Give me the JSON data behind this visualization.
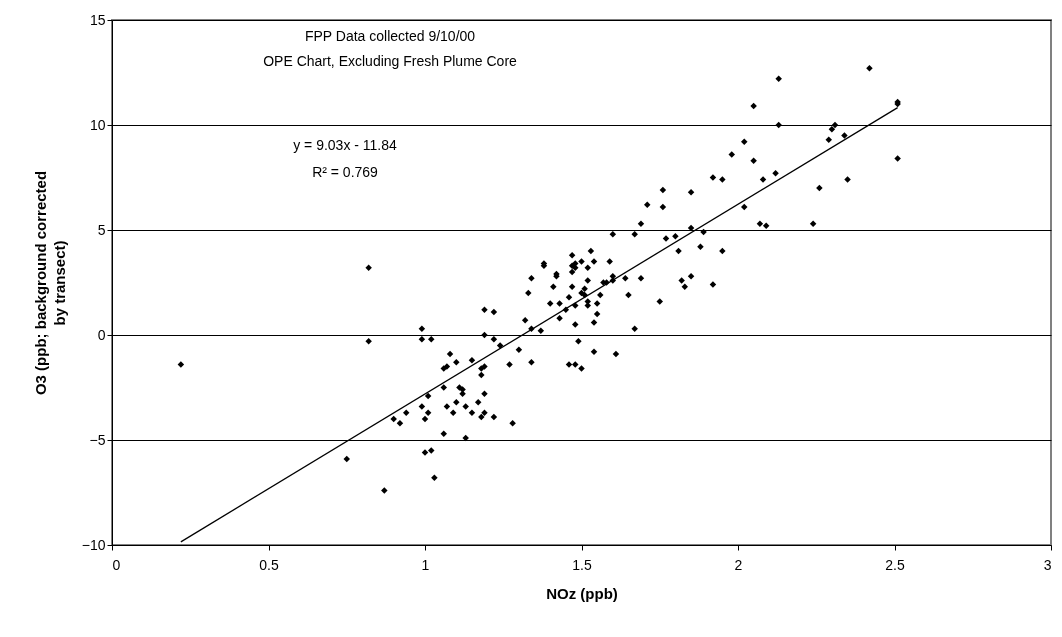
{
  "chart_data": {
    "type": "scatter",
    "xlabel": "NOz (ppb)",
    "ylabel": "O3 (ppb; background corrected by transect)",
    "annotations": [
      "FPP Data collected 9/10/00",
      "OPE Chart, Excluding Fresh Plume Core",
      "y = 9.03x - 11.84",
      "R² = 0.769"
    ],
    "xlim": [
      0,
      3
    ],
    "xticks": [
      0,
      0.5,
      1,
      1.5,
      2,
      2.5,
      3
    ],
    "ylim": [
      -10,
      15
    ],
    "yticks": [
      -10,
      -5,
      0,
      5,
      10,
      15
    ],
    "grid": "y",
    "series": [
      {
        "color": "#000000",
        "marker": "diamond",
        "x": [
          0.22,
          0.82,
          0.82,
          0.99,
          0.99,
          1.02,
          1.08,
          1.07,
          1.06,
          1.06,
          1.01,
          1.07,
          0.99,
          1.01,
          1.0,
          0.94,
          0.9,
          0.92,
          1.06,
          0.75,
          1.0,
          1.02,
          1.03,
          0.87,
          1.1,
          1.11,
          1.12,
          1.12,
          1.15,
          1.1,
          1.09,
          1.13,
          1.15,
          1.17,
          1.19,
          1.18,
          1.19,
          1.22,
          1.28,
          1.13,
          1.18,
          1.18,
          1.19,
          1.19,
          1.22,
          1.19,
          1.22,
          1.24,
          1.27,
          1.3,
          1.32,
          1.34,
          1.34,
          1.37,
          1.33,
          1.34,
          1.38,
          1.38,
          1.41,
          1.42,
          1.42,
          1.4,
          1.43,
          1.43,
          1.45,
          1.46,
          1.47,
          1.47,
          1.47,
          1.48,
          1.47,
          1.48,
          1.48,
          1.48,
          1.49,
          1.46,
          1.48,
          1.5,
          1.5,
          1.53,
          1.52,
          1.54,
          1.59,
          1.6,
          1.67,
          1.69,
          1.71,
          1.76,
          1.76,
          1.77,
          1.8,
          1.81,
          1.85,
          1.85,
          1.89,
          1.88,
          1.95,
          1.92,
          1.95,
          1.98,
          2.02,
          2.05,
          2.08,
          2.12,
          2.02,
          2.07,
          2.09,
          2.24,
          2.26,
          2.35,
          1.6,
          1.6,
          1.57,
          1.58,
          1.56,
          1.55,
          1.55,
          1.54,
          1.52,
          1.51,
          1.51,
          1.52,
          1.52,
          1.5,
          1.64,
          1.69,
          1.65,
          1.75,
          1.67,
          1.82,
          1.83,
          1.85,
          1.92,
          1.54,
          1.61,
          2.42,
          2.51,
          2.51,
          2.31,
          2.3,
          2.34,
          2.29,
          2.51,
          2.05,
          2.13,
          2.13
        ],
        "values": [
          -1.4,
          3.2,
          -0.3,
          0.3,
          -0.2,
          -0.2,
          -0.9,
          -1.5,
          -1.6,
          -2.5,
          -2.9,
          -3.4,
          -3.4,
          -3.7,
          -4.0,
          -3.7,
          -4.0,
          -4.2,
          -4.7,
          -5.9,
          -5.6,
          -5.5,
          -6.8,
          -7.4,
          -1.3,
          -2.5,
          -2.8,
          -2.6,
          -1.2,
          -3.2,
          -3.7,
          -3.4,
          -3.7,
          -3.2,
          -2.8,
          -3.9,
          -3.7,
          -3.9,
          -4.2,
          -4.9,
          -1.6,
          -1.9,
          -1.5,
          1.2,
          1.1,
          0.0,
          -0.2,
          -0.5,
          -1.4,
          -0.7,
          0.7,
          -1.3,
          0.3,
          0.2,
          2.0,
          2.7,
          3.3,
          3.4,
          2.3,
          2.9,
          2.8,
          1.5,
          1.5,
          0.8,
          1.2,
          1.8,
          2.3,
          3.8,
          3.3,
          3.2,
          3.0,
          3.4,
          1.4,
          0.5,
          -0.3,
          -1.4,
          -1.4,
          -1.6,
          3.5,
          4.0,
          3.2,
          3.5,
          3.5,
          4.8,
          4.8,
          5.3,
          6.2,
          6.9,
          6.1,
          4.6,
          4.7,
          4.0,
          6.8,
          5.1,
          4.9,
          4.2,
          4.0,
          7.5,
          7.4,
          8.6,
          9.2,
          8.3,
          7.4,
          7.7,
          6.1,
          5.3,
          5.2,
          5.3,
          7.0,
          7.4,
          2.8,
          2.6,
          2.5,
          2.5,
          1.9,
          1.5,
          1.0,
          0.6,
          2.6,
          2.2,
          1.9,
          1.6,
          1.4,
          2.0,
          2.7,
          2.7,
          1.9,
          1.6,
          0.3,
          2.6,
          2.3,
          2.8,
          2.4,
          -0.8,
          -0.9,
          12.7,
          11.1,
          11.0,
          10.0,
          9.8,
          9.5,
          9.3,
          8.4,
          10.9,
          12.2,
          10.0
        ]
      },
      {
        "type": "line",
        "color": "#000000",
        "x": [
          0.22,
          2.51
        ],
        "values": [
          -9.85,
          10.83
        ]
      }
    ]
  }
}
